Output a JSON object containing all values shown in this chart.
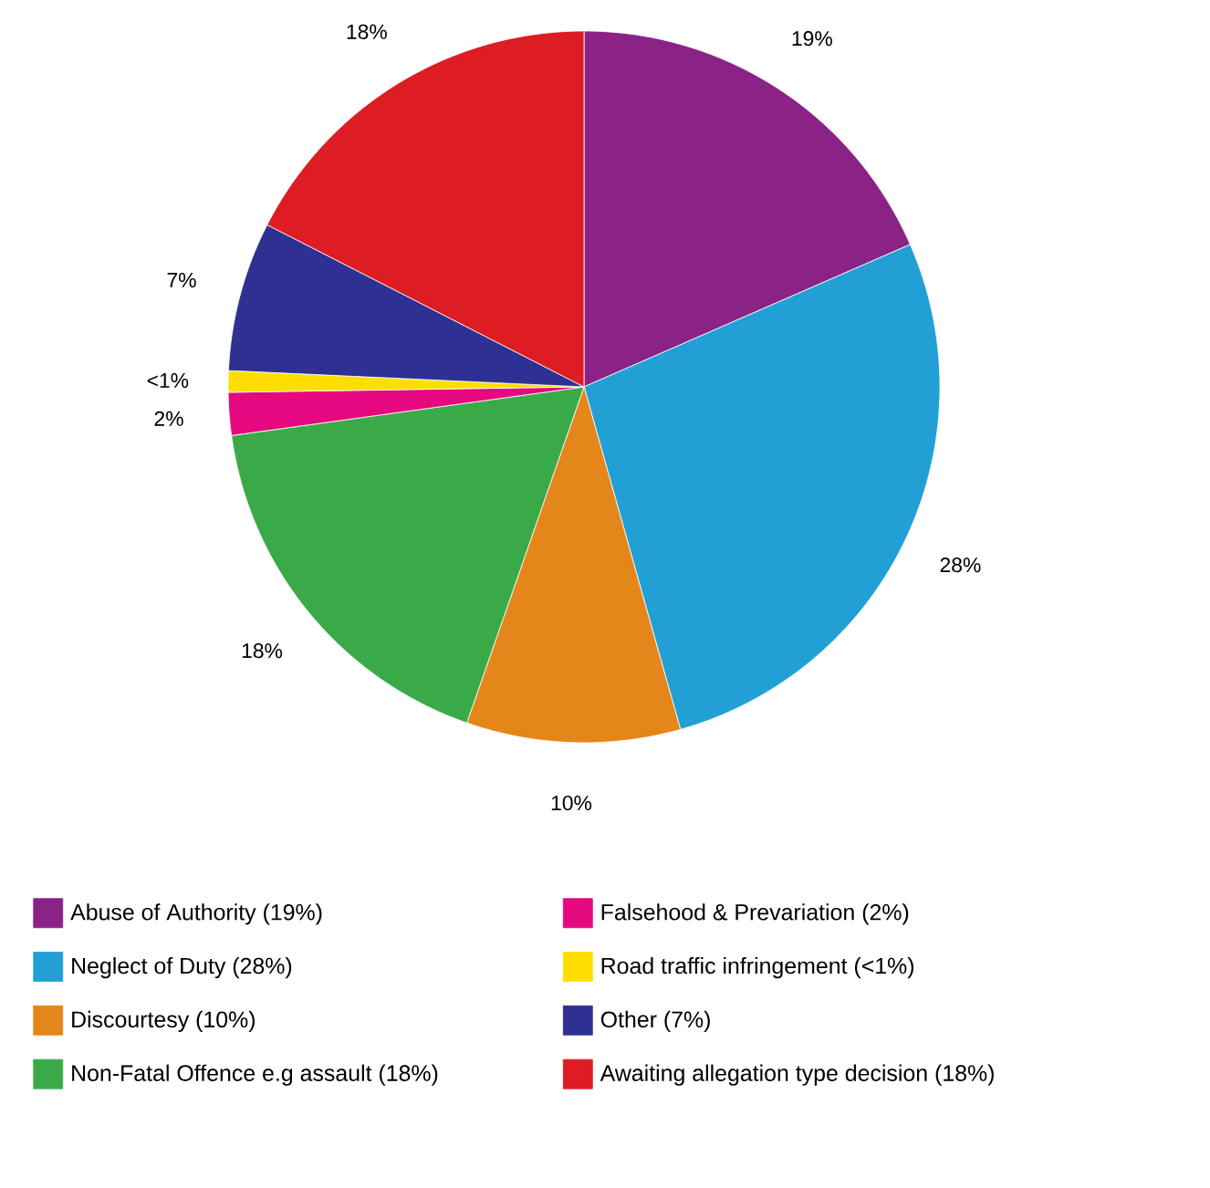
{
  "chart_data": {
    "type": "pie",
    "categories": [
      "Abuse of Authority (19%)",
      "Neglect of Duty (28%)",
      "Discourtesy (10%)",
      "Non-Fatal Offence e.g assault (18%)",
      "Falsehood & Prevariation (2%)",
      "Road traffic infringement (<1%)",
      "Other (7%)",
      "Awaiting allegation type decision (18%)"
    ],
    "values": [
      19,
      28,
      10,
      18,
      2,
      1,
      7,
      18
    ],
    "value_labels": [
      "19%",
      "28%",
      "10%",
      "18%",
      "2%",
      "<1%",
      "7%",
      "18%"
    ],
    "colors": [
      "#8b2386",
      "#22a0d6",
      "#e5861b",
      "#3aaa49",
      "#e5087e",
      "#fedd00",
      "#2e3192",
      "#dd1c24"
    ],
    "legend": "bottom"
  }
}
